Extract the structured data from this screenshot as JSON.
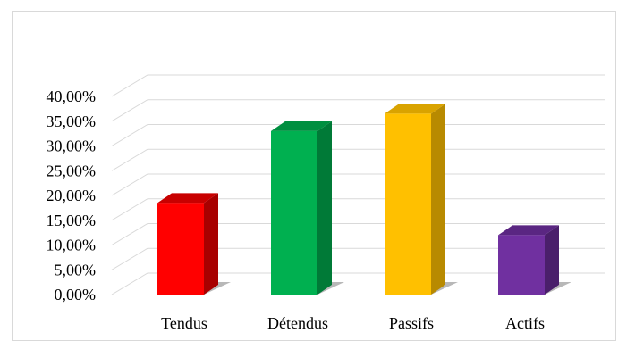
{
  "chart_data": {
    "type": "bar",
    "categories": [
      "Tendus",
      "Détendus",
      "Passifs",
      "Actifs"
    ],
    "values": [
      18.5,
      33.0,
      36.5,
      12.0
    ],
    "ylim": [
      0,
      40
    ],
    "y_ticks": [
      0,
      5,
      10,
      15,
      20,
      25,
      30,
      35,
      40
    ],
    "y_tick_labels": [
      "0,00%",
      "5,00%",
      "10,00%",
      "15,00%",
      "20,00%",
      "25,00%",
      "30,00%",
      "35,00%",
      "40,00%"
    ],
    "title": "",
    "xlabel": "",
    "ylabel": "",
    "grid": true,
    "style": "3d-column",
    "colors": {
      "front": [
        "#ff0000",
        "#00b050",
        "#ffc000",
        "#7030a0"
      ],
      "side": [
        "#a80000",
        "#007a37",
        "#b88a00",
        "#4a1f6b"
      ],
      "top": [
        "#c80000",
        "#008f40",
        "#d9a300",
        "#5a2682"
      ],
      "grid": "#d9d9d9",
      "text": "#000000"
    }
  }
}
